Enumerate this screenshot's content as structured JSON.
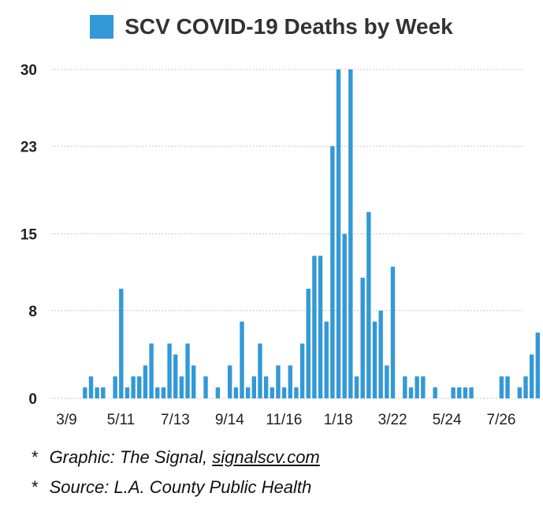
{
  "chart_data": {
    "type": "bar",
    "title": "SCV COVID-19 Deaths by Week",
    "series": [
      {
        "name": "SCV COVID-19 Deaths by Week",
        "color": "#3399d6",
        "values": [
          0,
          0,
          1,
          2,
          1,
          1,
          0,
          2,
          10,
          1,
          2,
          2,
          3,
          5,
          1,
          1,
          5,
          4,
          2,
          5,
          3,
          0,
          2,
          0,
          1,
          0,
          3,
          1,
          7,
          1,
          2,
          5,
          2,
          1,
          3,
          1,
          3,
          1,
          5,
          10,
          13,
          13,
          7,
          23,
          30,
          15,
          30,
          2,
          11,
          17,
          7,
          8,
          3,
          12,
          0,
          2,
          1,
          2,
          2,
          0,
          1,
          0,
          0,
          1,
          1,
          1,
          1,
          0,
          0,
          0,
          0,
          2,
          2,
          0,
          1,
          2,
          4,
          6
        ]
      }
    ],
    "x_tick_labels": [
      {
        "index": 0,
        "label": "3/9"
      },
      {
        "index": 9,
        "label": "5/11"
      },
      {
        "index": 18,
        "label": "7/13"
      },
      {
        "index": 27,
        "label": "9/14"
      },
      {
        "index": 36,
        "label": "11/16"
      },
      {
        "index": 45,
        "label": "1/18"
      },
      {
        "index": 54,
        "label": "3/22"
      },
      {
        "index": 63,
        "label": "5/24"
      },
      {
        "index": 72,
        "label": "7/26"
      }
    ],
    "y_ticks": [
      0,
      8,
      15,
      23,
      30
    ],
    "ylim": [
      0,
      30
    ],
    "grid": true,
    "legend": "top-center",
    "xlabel": "",
    "ylabel": ""
  },
  "footnotes": {
    "graphic_prefix": "Graphic: The Signal, ",
    "graphic_link": "signalscv.com",
    "source": "Source: L.A. County Public Health",
    "bullet": "*"
  }
}
